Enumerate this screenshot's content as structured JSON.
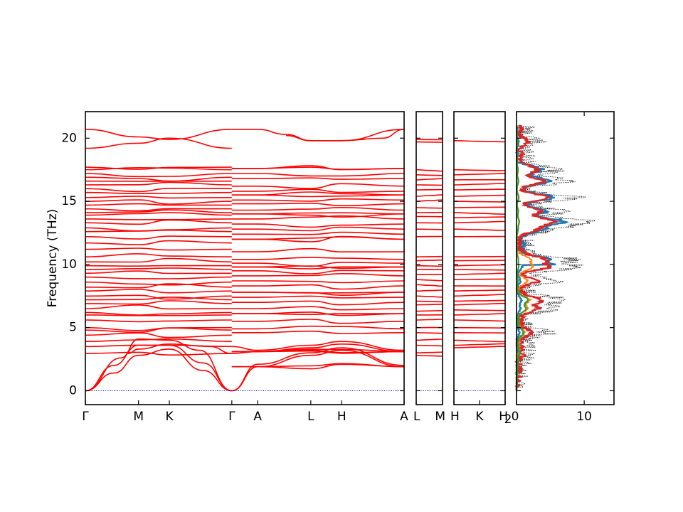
{
  "chart_data": {
    "type": "line",
    "ylabel": "Frequency (THz)",
    "ylim": [
      -1.1,
      22.1
    ],
    "yticks": [
      0,
      5,
      10,
      15,
      20
    ],
    "panels": [
      {
        "name": "band-path-main",
        "segments": [
          {
            "from": "Γ",
            "to": "M",
            "length": 0.74
          },
          {
            "from": "M",
            "to": "K",
            "length": 0.43
          },
          {
            "from": "K",
            "to": "Γ",
            "length": 0.87
          },
          {
            "from": "Γ",
            "to": "A",
            "length": 0.36
          },
          {
            "from": "A",
            "to": "L",
            "length": 0.74
          },
          {
            "from": "L",
            "to": "H",
            "length": 0.43
          },
          {
            "from": "H",
            "to": "A",
            "length": 0.87
          }
        ],
        "xtick_labels": [
          "Γ",
          "M",
          "K",
          "Γ",
          "A",
          "L",
          "H",
          "A"
        ]
      },
      {
        "name": "band-path-L-M",
        "segments": [
          {
            "from": "L",
            "to": "M",
            "length": 0.36
          }
        ],
        "xtick_labels": [
          "L",
          "M"
        ]
      },
      {
        "name": "band-path-H-K",
        "segments": [
          {
            "from": "H",
            "to": "K",
            "length": 0.36
          },
          {
            "from": "K",
            "to": "H",
            "length": 0.36
          }
        ],
        "xtick_labels": [
          "H",
          "K",
          "H"
        ]
      },
      {
        "name": "dos",
        "xlim": [
          0,
          14.4
        ],
        "xticks": [
          0,
          10
        ],
        "xtick_labels": [
          "0",
          "10"
        ]
      }
    ],
    "first_panel_left_tick_suffix": "",
    "third_panel_right_tick_suffix": "2",
    "gamma_band_frequencies": [
      0,
      0,
      0,
      2.95,
      2.95,
      3.5,
      3.9,
      4.4,
      4.8,
      5.0,
      5.6,
      6.0,
      6.2,
      6.5,
      6.9,
      7.2,
      7.5,
      7.9,
      8.2,
      8.6,
      9.0,
      9.3,
      9.6,
      9.9,
      10.2,
      10.6,
      11.2,
      11.7,
      12.2,
      12.6,
      12.9,
      13.3,
      13.6,
      13.9,
      14.1,
      14.4,
      14.7,
      15.0,
      15.3,
      15.7,
      16.0,
      16.3,
      16.6,
      16.9,
      17.2,
      17.5,
      17.7,
      19.2,
      20.7
    ],
    "A_band_frequencies": [
      1.9,
      1.9,
      3.1,
      3.1,
      4.6,
      4.9,
      5.5,
      6.1,
      6.5,
      7.0,
      7.4,
      7.8,
      8.3,
      8.7,
      9.1,
      9.5,
      9.8,
      10.1,
      10.4,
      11.0,
      12.0,
      12.4,
      12.8,
      13.2,
      13.6,
      14.0,
      14.3,
      14.8,
      15.1,
      15.5,
      15.8,
      16.2,
      16.8,
      17.2,
      17.6,
      19.8,
      20.7
    ],
    "dos_series": [
      {
        "color": "#000000",
        "style": "dotted"
      },
      {
        "color": "#1f77b4"
      },
      {
        "color": "#d62728"
      },
      {
        "color": "#ff7f0e"
      },
      {
        "color": "#2ca02c"
      }
    ],
    "band_color": "#ff0000",
    "zero_line_color": "#0000ff"
  }
}
